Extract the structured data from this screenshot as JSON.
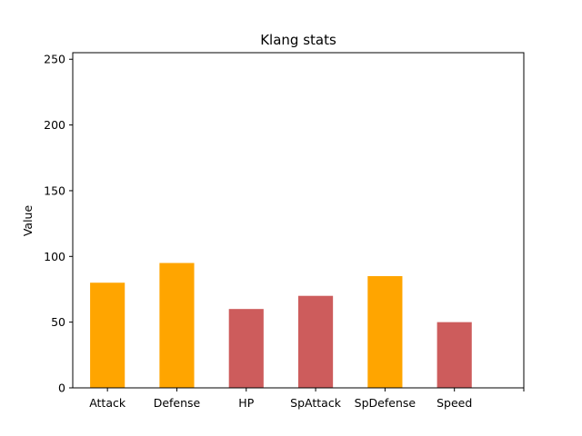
{
  "chart_data": {
    "type": "bar",
    "title": "Klang stats",
    "xlabel": "",
    "ylabel": "Value",
    "categories": [
      "Attack",
      "Defense",
      "HP",
      "SpAttack",
      "SpDefense",
      "Speed"
    ],
    "values": [
      80,
      95,
      60,
      70,
      85,
      50
    ],
    "bar_colors": [
      "#ffa500",
      "#ffa500",
      "#cd5c5c",
      "#cd5c5c",
      "#ffa500",
      "#cd5c5c"
    ],
    "ylim": [
      0,
      255
    ],
    "yticks": [
      0,
      50,
      100,
      150,
      200,
      250
    ],
    "grid": false,
    "legend": "none"
  }
}
